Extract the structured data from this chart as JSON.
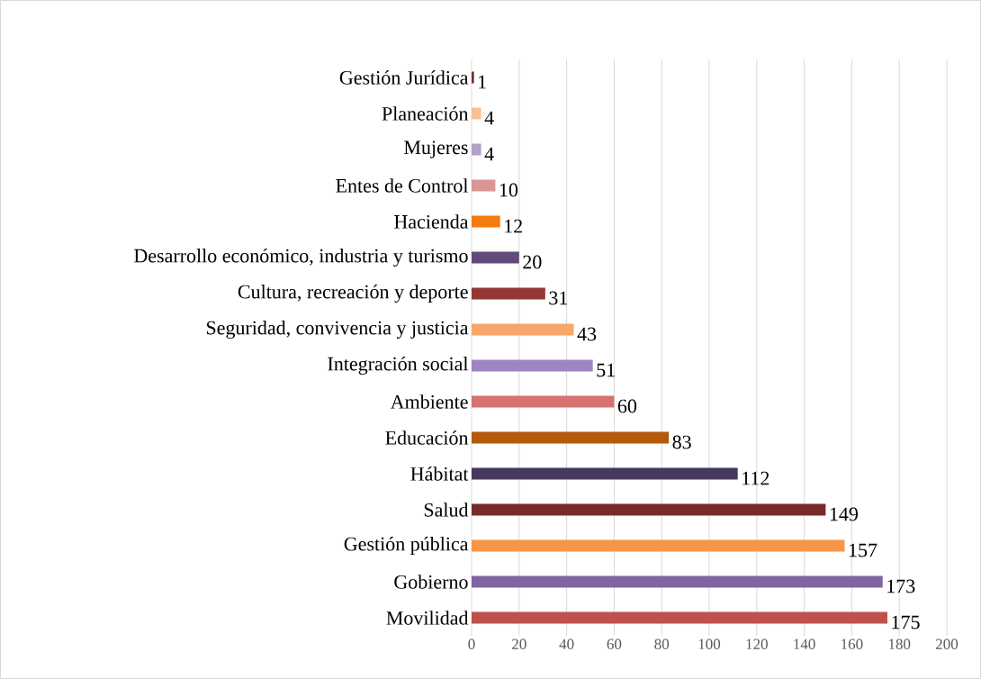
{
  "chart_data": {
    "type": "bar",
    "orientation": "horizontal",
    "categories": [
      "Gestión Jurídica",
      "Planeación",
      "Mujeres",
      "Entes de Control",
      "Hacienda",
      "Desarrollo económico, industria y turismo",
      "Cultura, recreación y deporte",
      "Seguridad, convivencia y justicia",
      "Integración social",
      "Ambiente",
      "Educación",
      "Hábitat",
      "Salud",
      "Gestión pública",
      "Gobierno",
      "Movilidad"
    ],
    "values": [
      1,
      4,
      4,
      10,
      12,
      20,
      31,
      43,
      51,
      60,
      83,
      112,
      149,
      157,
      173,
      175
    ],
    "colors": [
      "#772c2a",
      "#fac090",
      "#b3a2c7",
      "#d99694",
      "#f57a0f",
      "#604a7b",
      "#953735",
      "#f9a66b",
      "#9c85c0",
      "#d47370",
      "#b45a0a",
      "#47385e",
      "#772c2a",
      "#f79646",
      "#8064a2",
      "#c0504d"
    ],
    "xlim": [
      0,
      200
    ],
    "xticks": [
      0,
      20,
      40,
      60,
      80,
      100,
      120,
      140,
      160,
      180,
      200
    ],
    "grid": "x",
    "data_labels": true
  }
}
